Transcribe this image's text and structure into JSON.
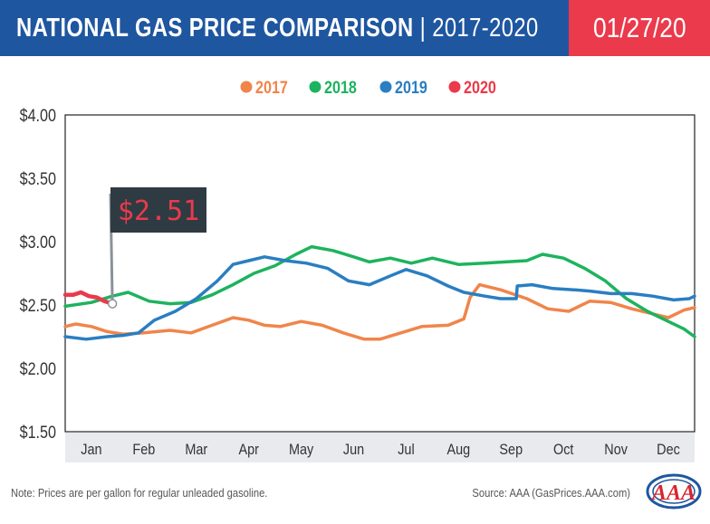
{
  "header": {
    "title_main": "NATIONAL GAS PRICE COMPARISON",
    "title_sub": "| 2017-2020",
    "date": "01/27/20",
    "title_color": "#1e56a0",
    "date_color": "#ea3a4b"
  },
  "footer": {
    "note": "Note: Prices are per gallon for regular unleaded gasoline.",
    "source": "Source: AAA (GasPrices.AAA.com)",
    "logo_text": "AAA"
  },
  "chart_data": {
    "type": "line",
    "title": "NATIONAL GAS PRICE COMPARISON | 2017-2020",
    "xlabel": "",
    "ylabel": "",
    "categories": [
      "Jan",
      "Feb",
      "Mar",
      "Apr",
      "May",
      "Jun",
      "Jul",
      "Aug",
      "Sep",
      "Oct",
      "Nov",
      "Dec"
    ],
    "y_ticks": [
      "$4.00",
      "$3.50",
      "$3.00",
      "$2.50",
      "$2.00",
      "$1.50"
    ],
    "ylim": [
      1.5,
      4.0
    ],
    "x_range": [
      0,
      12
    ],
    "grid": false,
    "legend_position": "top-center",
    "callout": {
      "label": "$2.51",
      "x": 0.9,
      "y": 2.51
    },
    "series": [
      {
        "name": "2017",
        "color": "#f0854b",
        "points": [
          [
            0,
            2.33
          ],
          [
            0.2,
            2.35
          ],
          [
            0.5,
            2.33
          ],
          [
            0.8,
            2.29
          ],
          [
            1.1,
            2.27
          ],
          [
            1.5,
            2.28
          ],
          [
            2.0,
            2.3
          ],
          [
            2.4,
            2.28
          ],
          [
            2.8,
            2.34
          ],
          [
            3.2,
            2.4
          ],
          [
            3.5,
            2.38
          ],
          [
            3.8,
            2.34
          ],
          [
            4.1,
            2.33
          ],
          [
            4.5,
            2.37
          ],
          [
            4.9,
            2.34
          ],
          [
            5.3,
            2.28
          ],
          [
            5.7,
            2.23
          ],
          [
            6.0,
            2.23
          ],
          [
            6.4,
            2.28
          ],
          [
            6.8,
            2.33
          ],
          [
            7.3,
            2.34
          ],
          [
            7.6,
            2.39
          ],
          [
            7.72,
            2.56
          ],
          [
            7.9,
            2.66
          ],
          [
            8.3,
            2.62
          ],
          [
            8.8,
            2.55
          ],
          [
            9.2,
            2.47
          ],
          [
            9.6,
            2.45
          ],
          [
            10.0,
            2.53
          ],
          [
            10.4,
            2.52
          ],
          [
            10.8,
            2.47
          ],
          [
            11.2,
            2.43
          ],
          [
            11.5,
            2.4
          ],
          [
            11.8,
            2.46
          ],
          [
            12.0,
            2.48
          ]
        ]
      },
      {
        "name": "2018",
        "color": "#1db35e",
        "points": [
          [
            0,
            2.49
          ],
          [
            0.5,
            2.52
          ],
          [
            0.9,
            2.57
          ],
          [
            1.2,
            2.6
          ],
          [
            1.6,
            2.53
          ],
          [
            2.0,
            2.51
          ],
          [
            2.4,
            2.52
          ],
          [
            2.8,
            2.58
          ],
          [
            3.2,
            2.66
          ],
          [
            3.6,
            2.75
          ],
          [
            4.0,
            2.81
          ],
          [
            4.4,
            2.9
          ],
          [
            4.7,
            2.96
          ],
          [
            5.1,
            2.93
          ],
          [
            5.5,
            2.88
          ],
          [
            5.8,
            2.84
          ],
          [
            6.2,
            2.87
          ],
          [
            6.6,
            2.83
          ],
          [
            7.0,
            2.87
          ],
          [
            7.5,
            2.82
          ],
          [
            8.0,
            2.83
          ],
          [
            8.4,
            2.84
          ],
          [
            8.8,
            2.85
          ],
          [
            9.1,
            2.9
          ],
          [
            9.5,
            2.87
          ],
          [
            9.9,
            2.79
          ],
          [
            10.3,
            2.69
          ],
          [
            10.7,
            2.55
          ],
          [
            11.1,
            2.45
          ],
          [
            11.5,
            2.37
          ],
          [
            11.8,
            2.31
          ],
          [
            12.0,
            2.25
          ]
        ]
      },
      {
        "name": "2019",
        "color": "#2a7ec2",
        "points": [
          [
            0,
            2.25
          ],
          [
            0.4,
            2.23
          ],
          [
            0.8,
            2.25
          ],
          [
            1.1,
            2.26
          ],
          [
            1.4,
            2.28
          ],
          [
            1.7,
            2.38
          ],
          [
            2.1,
            2.45
          ],
          [
            2.5,
            2.55
          ],
          [
            2.9,
            2.69
          ],
          [
            3.2,
            2.82
          ],
          [
            3.5,
            2.85
          ],
          [
            3.8,
            2.88
          ],
          [
            4.2,
            2.85
          ],
          [
            4.6,
            2.83
          ],
          [
            5.0,
            2.79
          ],
          [
            5.4,
            2.69
          ],
          [
            5.8,
            2.66
          ],
          [
            6.2,
            2.73
          ],
          [
            6.5,
            2.78
          ],
          [
            6.9,
            2.73
          ],
          [
            7.3,
            2.65
          ],
          [
            7.6,
            2.6
          ],
          [
            8.0,
            2.57
          ],
          [
            8.3,
            2.55
          ],
          [
            8.6,
            2.55
          ],
          [
            8.62,
            2.65
          ],
          [
            8.9,
            2.66
          ],
          [
            9.3,
            2.63
          ],
          [
            9.7,
            2.62
          ],
          [
            10.0,
            2.61
          ],
          [
            10.4,
            2.59
          ],
          [
            10.8,
            2.59
          ],
          [
            11.2,
            2.57
          ],
          [
            11.6,
            2.54
          ],
          [
            11.9,
            2.55
          ],
          [
            12.0,
            2.57
          ]
        ]
      },
      {
        "name": "2020",
        "color": "#ea3a4b",
        "points": [
          [
            0,
            2.58
          ],
          [
            0.15,
            2.58
          ],
          [
            0.3,
            2.6
          ],
          [
            0.45,
            2.57
          ],
          [
            0.6,
            2.56
          ],
          [
            0.75,
            2.53
          ],
          [
            0.9,
            2.51
          ]
        ]
      }
    ]
  }
}
